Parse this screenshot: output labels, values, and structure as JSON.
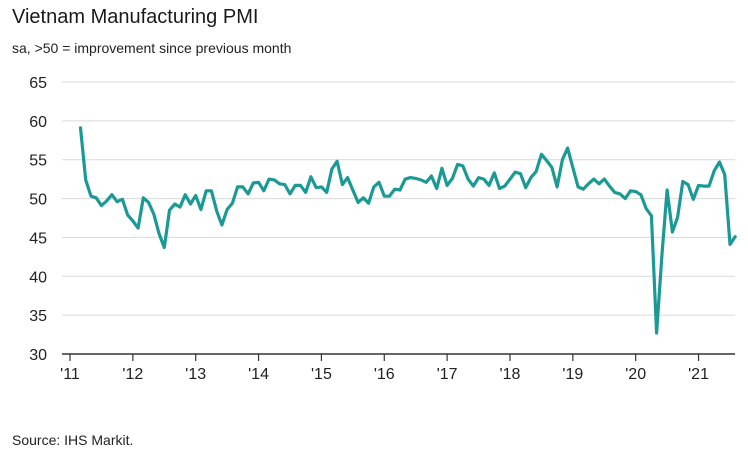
{
  "title": "Vietnam Manufacturing PMI",
  "subtitle": "sa, >50 = improvement since previous month",
  "source": "Source: IHS Markit.",
  "colors": {
    "line": "#1b9a95",
    "grid": "#d9d9d9",
    "axis": "#333333"
  },
  "chart_data": {
    "type": "line",
    "title": "Vietnam Manufacturing PMI",
    "xlabel": "",
    "ylabel": "",
    "ylim": [
      30,
      65
    ],
    "yticks": [
      30,
      35,
      40,
      45,
      50,
      55,
      60,
      65
    ],
    "xlim": [
      2011.0,
      2021.58
    ],
    "xtick_labels": [
      "'11",
      "'12",
      "'13",
      "'14",
      "'15",
      "'16",
      "'17",
      "'18",
      "'19",
      "'20",
      "'21"
    ],
    "xtick_years": [
      2011,
      2012,
      2013,
      2014,
      2015,
      2016,
      2017,
      2018,
      2019,
      2020,
      2021
    ],
    "grid": true,
    "series": [
      {
        "name": "Vietnam Manufacturing PMI",
        "start": "2011-03",
        "values": [
          59.1,
          52.4,
          50.3,
          50.1,
          49.1,
          49.7,
          50.5,
          49.6,
          49.9,
          47.9,
          47.1,
          46.2,
          50.1,
          49.5,
          48.0,
          45.5,
          43.7,
          48.5,
          49.3,
          48.9,
          50.5,
          49.3,
          50.4,
          48.6,
          51.0,
          51.0,
          48.4,
          46.6,
          48.6,
          49.4,
          51.5,
          51.5,
          50.6,
          52.0,
          52.1,
          51.0,
          52.5,
          52.4,
          51.9,
          51.8,
          50.6,
          51.7,
          51.7,
          50.8,
          52.8,
          51.4,
          51.5,
          50.8,
          53.8,
          54.8,
          51.8,
          52.7,
          51.1,
          49.5,
          50.1,
          49.4,
          51.5,
          52.1,
          50.3,
          50.3,
          51.2,
          51.1,
          52.5,
          52.7,
          52.6,
          52.4,
          52.1,
          52.9,
          51.3,
          53.9,
          51.7,
          52.6,
          54.4,
          54.2,
          52.5,
          51.6,
          52.7,
          52.5,
          51.7,
          53.3,
          51.3,
          51.6,
          52.5,
          53.4,
          53.2,
          51.4,
          52.7,
          53.5,
          55.7,
          54.9,
          54.0,
          51.5,
          55.0,
          56.5,
          54.0,
          51.5,
          51.2,
          51.9,
          52.5,
          51.9,
          52.5,
          51.6,
          50.8,
          50.6,
          50.0,
          51.0,
          50.9,
          50.5,
          48.7,
          47.8,
          32.7,
          42.7,
          51.1,
          45.7,
          47.6,
          52.2,
          51.8,
          49.9,
          51.7,
          51.6,
          51.6,
          53.6,
          54.7,
          53.1,
          44.1,
          45.1
        ]
      }
    ]
  }
}
